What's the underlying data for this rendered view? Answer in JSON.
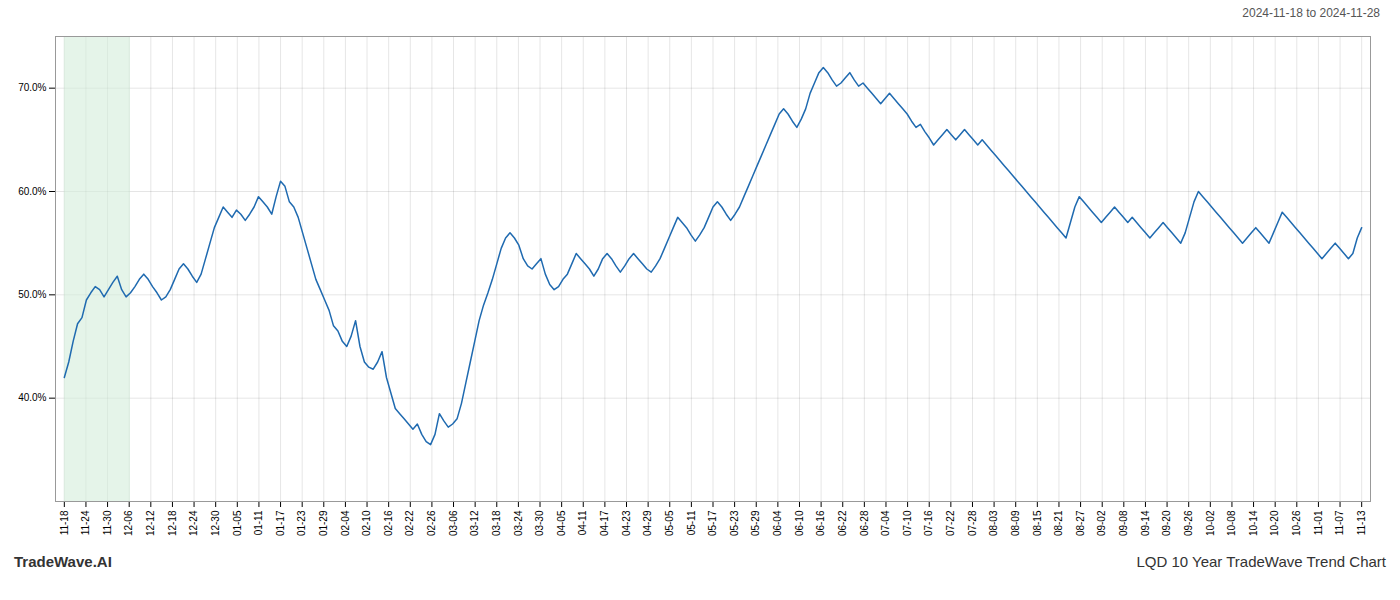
{
  "chart_data": {
    "type": "line",
    "title": "LQD 10 Year TradeWave Trend Chart",
    "subtitle": "2024-11-18 to 2024-11-28",
    "annotations": [
      "TradeWave.AI"
    ],
    "color": "#1f6ab0",
    "grid": true,
    "shaded_region": {
      "xmin": 0,
      "xmax": 15,
      "color": "#d4edda"
    },
    "xlim": [
      -2,
      296
    ],
    "xticks": [
      {
        "value": 0,
        "label": "11-18"
      },
      {
        "value": 4.9,
        "label": "11-24"
      },
      {
        "value": 9.8,
        "label": "11-30"
      },
      {
        "value": 14.7,
        "label": "12-06"
      },
      {
        "value": 19.6,
        "label": "12-12"
      },
      {
        "value": 24.5,
        "label": "12-18"
      },
      {
        "value": 29.4,
        "label": "12-24"
      },
      {
        "value": 34.3,
        "label": "12-30"
      },
      {
        "value": 39.2,
        "label": "01-05"
      },
      {
        "value": 44.1,
        "label": "01-11"
      },
      {
        "value": 49,
        "label": "01-17"
      },
      {
        "value": 53.9,
        "label": "01-23"
      },
      {
        "value": 58.8,
        "label": "01-29"
      },
      {
        "value": 63.7,
        "label": "02-04"
      },
      {
        "value": 68.6,
        "label": "02-10"
      },
      {
        "value": 73.5,
        "label": "02-16"
      },
      {
        "value": 78.4,
        "label": "02-22"
      },
      {
        "value": 83.3,
        "label": "02-26"
      },
      {
        "value": 88.2,
        "label": "03-06"
      },
      {
        "value": 93.1,
        "label": "03-12"
      },
      {
        "value": 98,
        "label": "03-18"
      },
      {
        "value": 102.9,
        "label": "03-24"
      },
      {
        "value": 107.8,
        "label": "03-30"
      },
      {
        "value": 112.7,
        "label": "04-05"
      },
      {
        "value": 117.6,
        "label": "04-11"
      },
      {
        "value": 122.5,
        "label": "04-17"
      },
      {
        "value": 127.4,
        "label": "04-23"
      },
      {
        "value": 132.3,
        "label": "04-29"
      },
      {
        "value": 137.2,
        "label": "05-05"
      },
      {
        "value": 142.1,
        "label": "05-11"
      },
      {
        "value": 147,
        "label": "05-17"
      },
      {
        "value": 151.9,
        "label": "05-23"
      },
      {
        "value": 156.8,
        "label": "05-29"
      },
      {
        "value": 161.7,
        "label": "06-04"
      },
      {
        "value": 166.6,
        "label": "06-10"
      },
      {
        "value": 171.5,
        "label": "06-16"
      },
      {
        "value": 176.4,
        "label": "06-22"
      },
      {
        "value": 181.3,
        "label": "06-28"
      },
      {
        "value": 186.2,
        "label": "07-04"
      },
      {
        "value": 191.1,
        "label": "07-10"
      },
      {
        "value": 196,
        "label": "07-16"
      },
      {
        "value": 200.9,
        "label": "07-22"
      },
      {
        "value": 205.8,
        "label": "07-28"
      },
      {
        "value": 210.7,
        "label": "08-03"
      },
      {
        "value": 215.6,
        "label": "08-09"
      },
      {
        "value": 220.5,
        "label": "08-15"
      },
      {
        "value": 225.4,
        "label": "08-21"
      },
      {
        "value": 230.3,
        "label": "08-27"
      },
      {
        "value": 235.2,
        "label": "09-02"
      },
      {
        "value": 240.1,
        "label": "09-08"
      },
      {
        "value": 245,
        "label": "09-14"
      },
      {
        "value": 249.9,
        "label": "09-20"
      },
      {
        "value": 254.8,
        "label": "09-26"
      },
      {
        "value": 259.7,
        "label": "10-02"
      },
      {
        "value": 264.6,
        "label": "10-08"
      },
      {
        "value": 269.5,
        "label": "10-14"
      },
      {
        "value": 274.4,
        "label": "10-20"
      },
      {
        "value": 279.3,
        "label": "10-26"
      },
      {
        "value": 284.2,
        "label": "11-01"
      },
      {
        "value": 289.1,
        "label": "11-07"
      },
      {
        "value": 294,
        "label": "11-13"
      }
    ],
    "ylim": [
      30,
      75
    ],
    "yticks": [
      {
        "value": 40,
        "label": "40.0%"
      },
      {
        "value": 50,
        "label": "50.0%"
      },
      {
        "value": 60,
        "label": "60.0%"
      },
      {
        "value": 70,
        "label": "70.0%"
      }
    ],
    "values": [
      42.0,
      43.5,
      45.5,
      47.2,
      47.8,
      49.5,
      50.2,
      50.8,
      50.5,
      49.8,
      50.5,
      51.2,
      51.8,
      50.5,
      49.8,
      50.2,
      50.8,
      51.5,
      52.0,
      51.5,
      50.8,
      50.2,
      49.5,
      49.8,
      50.5,
      51.5,
      52.5,
      53.0,
      52.5,
      51.8,
      51.2,
      52.0,
      53.5,
      55.0,
      56.5,
      57.5,
      58.5,
      58.0,
      57.5,
      58.2,
      57.8,
      57.2,
      57.8,
      58.5,
      59.5,
      59.0,
      58.5,
      57.8,
      59.5,
      61.0,
      60.5,
      59.0,
      58.5,
      57.5,
      56.0,
      54.5,
      53.0,
      51.5,
      50.5,
      49.5,
      48.5,
      47.0,
      46.5,
      45.5,
      45.0,
      46.0,
      47.5,
      45.0,
      43.5,
      43.0,
      42.8,
      43.5,
      44.5,
      42.0,
      40.5,
      39.0,
      38.5,
      38.0,
      37.5,
      37.0,
      37.5,
      36.5,
      35.8,
      35.5,
      36.5,
      38.5,
      37.8,
      37.2,
      37.5,
      38.0,
      39.5,
      41.5,
      43.5,
      45.5,
      47.5,
      49.0,
      50.2,
      51.5,
      53.0,
      54.5,
      55.5,
      56.0,
      55.5,
      54.8,
      53.5,
      52.8,
      52.5,
      53.0,
      53.5,
      52.0,
      51.0,
      50.5,
      50.8,
      51.5,
      52.0,
      53.0,
      54.0,
      53.5,
      53.0,
      52.5,
      51.8,
      52.5,
      53.5,
      54.0,
      53.5,
      52.8,
      52.2,
      52.8,
      53.5,
      54.0,
      53.5,
      53.0,
      52.5,
      52.2,
      52.8,
      53.5,
      54.5,
      55.5,
      56.5,
      57.5,
      57.0,
      56.5,
      55.8,
      55.2,
      55.8,
      56.5,
      57.5,
      58.5,
      59.0,
      58.5,
      57.8,
      57.2,
      57.8,
      58.5,
      59.5,
      60.5,
      61.5,
      62.5,
      63.5,
      64.5,
      65.5,
      66.5,
      67.5,
      68.0,
      67.5,
      66.8,
      66.2,
      67.0,
      68.0,
      69.5,
      70.5,
      71.5,
      72.0,
      71.5,
      70.8,
      70.2,
      70.5,
      71.0,
      71.5,
      70.8,
      70.2,
      70.5,
      70.0,
      69.5,
      69.0,
      68.5,
      69.0,
      69.5,
      69.0,
      68.5,
      68.0,
      67.5,
      66.8,
      66.2,
      66.5,
      65.8,
      65.2,
      64.5,
      65.0,
      65.5,
      66.0,
      65.5,
      65.0,
      65.5,
      66.0,
      65.5,
      65.0,
      64.5,
      65.0,
      64.5,
      64.0,
      63.5,
      63.0,
      62.5,
      62.0,
      61.5,
      61.0,
      60.5,
      60.0,
      59.5,
      59.0,
      58.5,
      58.0,
      57.5,
      57.0,
      56.5,
      56.0,
      55.5,
      57.0,
      58.5,
      59.5,
      59.0,
      58.5,
      58.0,
      57.5,
      57.0,
      57.5,
      58.0,
      58.5,
      58.0,
      57.5,
      57.0,
      57.5,
      57.0,
      56.5,
      56.0,
      55.5,
      56.0,
      56.5,
      57.0,
      56.5,
      56.0,
      55.5,
      55.0,
      56.0,
      57.5,
      59.0,
      60.0,
      59.5,
      59.0,
      58.5,
      58.0,
      57.5,
      57.0,
      56.5,
      56.0,
      55.5,
      55.0,
      55.5,
      56.0,
      56.5,
      56.0,
      55.5,
      55.0,
      56.0,
      57.0,
      58.0,
      57.5,
      57.0,
      56.5,
      56.0,
      55.5,
      55.0,
      54.5,
      54.0,
      53.5,
      54.0,
      54.5,
      55.0,
      54.5,
      54.0,
      53.5,
      54.0,
      55.5,
      56.5
    ]
  }
}
